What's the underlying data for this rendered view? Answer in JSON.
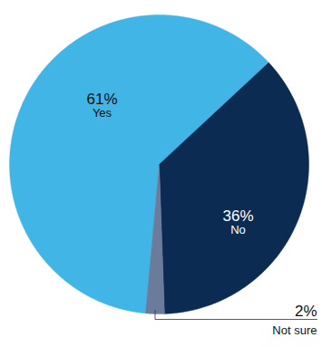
{
  "chart_data": {
    "type": "pie",
    "categories": [
      "Yes",
      "No",
      "Not sure"
    ],
    "values": [
      61,
      36,
      2
    ],
    "value_labels": [
      "61%",
      "36%",
      "2%"
    ],
    "colors": [
      "#41b6e6",
      "#0b2b52",
      "#6b7b9c"
    ],
    "data_labels": true
  }
}
